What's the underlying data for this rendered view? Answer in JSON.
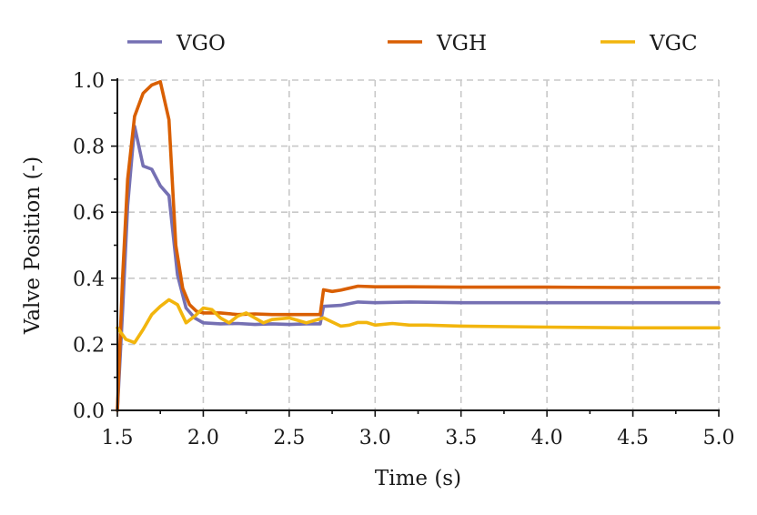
{
  "chart_data": {
    "type": "line",
    "title": "",
    "xlabel": "Time (s)",
    "ylabel": "Valve Position (-)",
    "xlim": [
      1.5,
      5.0
    ],
    "ylim": [
      0.0,
      1.0
    ],
    "xticks": [
      "1.5",
      "2.0",
      "2.5",
      "3.0",
      "3.5",
      "4.0",
      "4.5",
      "5.0"
    ],
    "yticks": [
      "0.0",
      "0.2",
      "0.4",
      "0.6",
      "0.8",
      "1.0"
    ],
    "grid": true,
    "legend_position": "top",
    "series": [
      {
        "name": "VGO",
        "color": "#7570b3",
        "x": [
          1.5,
          1.53,
          1.56,
          1.6,
          1.65,
          1.7,
          1.75,
          1.8,
          1.85,
          1.9,
          1.95,
          2.0,
          2.1,
          2.2,
          2.3,
          2.4,
          2.5,
          2.6,
          2.65,
          2.68,
          2.7,
          2.8,
          2.9,
          3.0,
          3.2,
          3.5,
          4.0,
          4.5,
          5.0
        ],
        "y": [
          0.0,
          0.3,
          0.62,
          0.86,
          0.74,
          0.73,
          0.68,
          0.65,
          0.41,
          0.31,
          0.28,
          0.265,
          0.262,
          0.263,
          0.26,
          0.262,
          0.26,
          0.262,
          0.262,
          0.262,
          0.315,
          0.318,
          0.328,
          0.326,
          0.328,
          0.326,
          0.326,
          0.326,
          0.326
        ]
      },
      {
        "name": "VGH",
        "color": "#d95f02",
        "x": [
          1.5,
          1.53,
          1.56,
          1.6,
          1.65,
          1.7,
          1.75,
          1.8,
          1.84,
          1.88,
          1.92,
          1.96,
          2.0,
          2.1,
          2.2,
          2.3,
          2.4,
          2.5,
          2.6,
          2.65,
          2.68,
          2.7,
          2.75,
          2.8,
          2.9,
          3.0,
          3.2,
          3.5,
          4.0,
          4.5,
          5.0
        ],
        "y": [
          0.0,
          0.4,
          0.7,
          0.89,
          0.96,
          0.985,
          0.995,
          0.88,
          0.5,
          0.37,
          0.32,
          0.3,
          0.295,
          0.295,
          0.29,
          0.292,
          0.29,
          0.29,
          0.29,
          0.29,
          0.29,
          0.365,
          0.36,
          0.364,
          0.376,
          0.374,
          0.374,
          0.373,
          0.373,
          0.372,
          0.372
        ]
      },
      {
        "name": "VGC",
        "color": "#f2b50d",
        "x": [
          1.5,
          1.55,
          1.6,
          1.65,
          1.7,
          1.75,
          1.8,
          1.85,
          1.9,
          1.95,
          2.0,
          2.05,
          2.1,
          2.15,
          2.2,
          2.25,
          2.3,
          2.35,
          2.4,
          2.5,
          2.6,
          2.7,
          2.8,
          2.85,
          2.9,
          2.95,
          3.0,
          3.1,
          3.2,
          3.3,
          3.5,
          4.0,
          4.5,
          5.0
        ],
        "y": [
          0.25,
          0.215,
          0.205,
          0.245,
          0.29,
          0.315,
          0.335,
          0.32,
          0.265,
          0.285,
          0.31,
          0.305,
          0.28,
          0.265,
          0.285,
          0.295,
          0.28,
          0.265,
          0.275,
          0.28,
          0.265,
          0.28,
          0.255,
          0.258,
          0.266,
          0.266,
          0.258,
          0.263,
          0.258,
          0.258,
          0.255,
          0.252,
          0.25,
          0.25
        ]
      }
    ]
  }
}
